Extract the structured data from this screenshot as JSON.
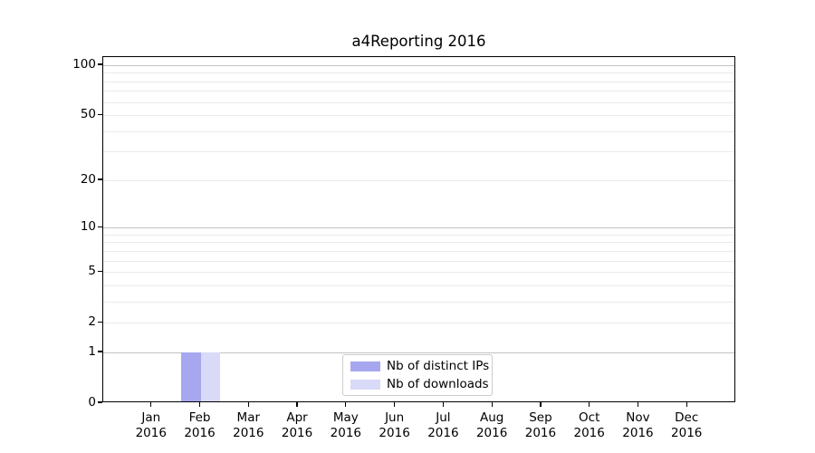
{
  "chart_data": {
    "type": "bar",
    "title": "a4Reporting 2016",
    "categories": [
      {
        "month": "Jan",
        "year": "2016"
      },
      {
        "month": "Feb",
        "year": "2016"
      },
      {
        "month": "Mar",
        "year": "2016"
      },
      {
        "month": "Apr",
        "year": "2016"
      },
      {
        "month": "May",
        "year": "2016"
      },
      {
        "month": "Jun",
        "year": "2016"
      },
      {
        "month": "Jul",
        "year": "2016"
      },
      {
        "month": "Aug",
        "year": "2016"
      },
      {
        "month": "Sep",
        "year": "2016"
      },
      {
        "month": "Oct",
        "year": "2016"
      },
      {
        "month": "Nov",
        "year": "2016"
      },
      {
        "month": "Dec",
        "year": "2016"
      }
    ],
    "series": [
      {
        "name": "Nb of distinct IPs",
        "color": "#a7a7f0",
        "values": [
          0,
          1,
          0,
          0,
          0,
          0,
          0,
          0,
          0,
          0,
          0,
          0
        ]
      },
      {
        "name": "Nb of downloads",
        "color": "#d9d9f8",
        "values": [
          0,
          1,
          0,
          0,
          0,
          0,
          0,
          0,
          0,
          0,
          0,
          0
        ]
      }
    ],
    "yscale": "log1p",
    "ylim": [
      0,
      112
    ],
    "yticks_labeled": [
      0,
      1,
      2,
      5,
      10,
      20,
      50,
      100
    ],
    "major_gridlines": [
      1,
      10,
      100
    ],
    "minor_gridlines": [
      2,
      3,
      4,
      5,
      6,
      7,
      8,
      9,
      20,
      30,
      40,
      50,
      60,
      70,
      80,
      90
    ],
    "grid": true,
    "legend_position": "lower center",
    "bar_group_width_fraction": 0.8
  },
  "colors": {
    "major_grid": "#c3c3c3",
    "minor_grid": "#eaeaea",
    "spine": "#000000",
    "legend_border": "#cccccc",
    "text": "#000000",
    "background": "#ffffff"
  }
}
